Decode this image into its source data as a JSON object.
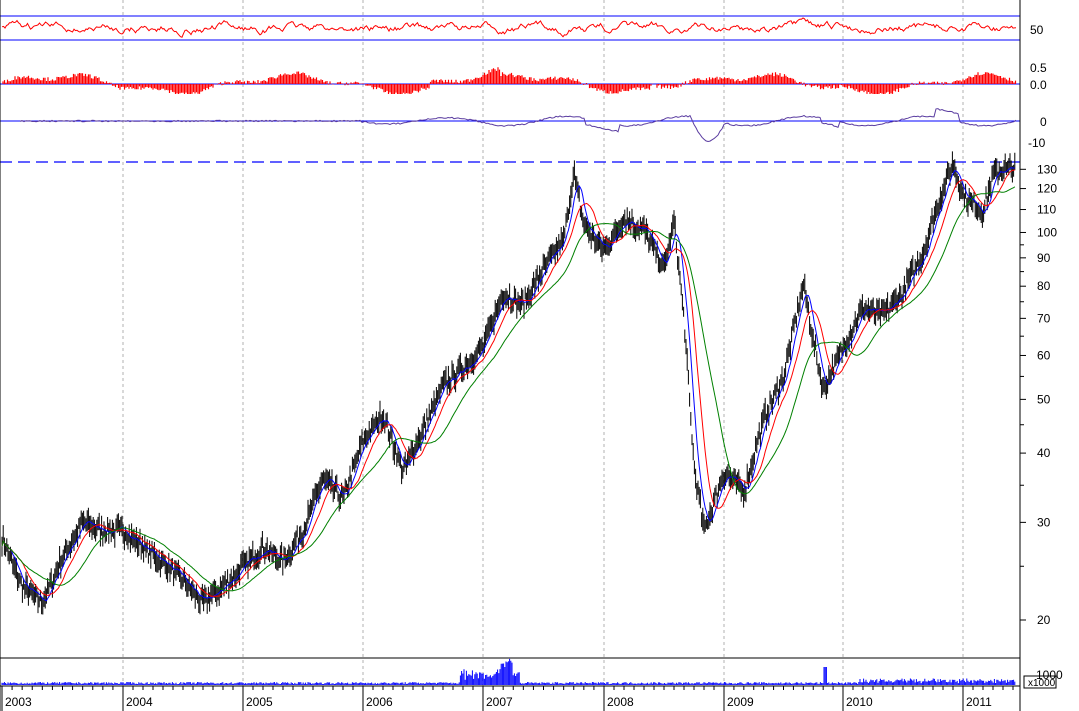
{
  "chart_data": {
    "type": "line",
    "scale": "log",
    "grid": "vertical dashed at year boundaries",
    "colors": {
      "price": "#000000",
      "ma_red": "#ff0000",
      "ma_blue": "#0000ff",
      "ma_green": "#008000",
      "rsi": "#ff0000",
      "histogram": "#ff0000",
      "momentum": "#5a3ca0",
      "volume": "#0000ff",
      "reference_lines": "#0000ff"
    },
    "x": [
      "2003",
      "2004",
      "2005",
      "2006",
      "2007",
      "2008",
      "2009",
      "2010",
      "2011"
    ],
    "price_panel": {
      "y_ticks": [
        "130",
        "120",
        "110",
        "100",
        "90",
        "80",
        "70",
        "60",
        "50",
        "40",
        "30",
        "20"
      ],
      "y_tick_values": [
        130,
        120,
        110,
        100,
        90,
        80,
        70,
        60,
        50,
        40,
        30,
        20
      ],
      "ylim": [
        17,
        138
      ],
      "reference_level": 134,
      "series": [
        {
          "points": [
            [
              "2003-01",
              28
            ],
            [
              "2003-03",
              23
            ],
            [
              "2003-05",
              21.5
            ],
            [
              "2003-07",
              26
            ],
            [
              "2003-09",
              30
            ],
            [
              "2003-11",
              29
            ],
            [
              "2004-01",
              29
            ],
            [
              "2004-03",
              27
            ],
            [
              "2004-05",
              25.5
            ],
            [
              "2004-07",
              23.5
            ],
            [
              "2004-09",
              21.5
            ],
            [
              "2004-11",
              23
            ],
            [
              "2005-01",
              25
            ],
            [
              "2005-03",
              27
            ],
            [
              "2005-05",
              25.5
            ],
            [
              "2005-07",
              29
            ],
            [
              "2005-09",
              36
            ],
            [
              "2005-11",
              33
            ],
            [
              "2006-01",
              42
            ],
            [
              "2006-03",
              47
            ],
            [
              "2006-05",
              37
            ],
            [
              "2006-07",
              44
            ],
            [
              "2006-09",
              53
            ],
            [
              "2006-11",
              57
            ],
            [
              "2007-01",
              62
            ],
            [
              "2007-03",
              78
            ],
            [
              "2007-05",
              74
            ],
            [
              "2007-07",
              86
            ],
            [
              "2007-09",
              97
            ],
            [
              "2007-10",
              128
            ],
            [
              "2007-11",
              103
            ],
            [
              "2008-01",
              93
            ],
            [
              "2008-03",
              106
            ],
            [
              "2008-05",
              101
            ],
            [
              "2008-07",
              86
            ],
            [
              "2008-08",
              105
            ],
            [
              "2008-09",
              70
            ],
            [
              "2008-10",
              38
            ],
            [
              "2008-11",
              29
            ],
            [
              "2009-01",
              37
            ],
            [
              "2009-03",
              34
            ],
            [
              "2009-05",
              46
            ],
            [
              "2009-07",
              55
            ],
            [
              "2009-09",
              81
            ],
            [
              "2009-10",
              64
            ],
            [
              "2009-11",
              52
            ],
            [
              "2010-01",
              62
            ],
            [
              "2010-03",
              73
            ],
            [
              "2010-05",
              71
            ],
            [
              "2010-07",
              78
            ],
            [
              "2010-09",
              92
            ],
            [
              "2010-11",
              120
            ],
            [
              "2010-12",
              133
            ],
            [
              "2011-01",
              117
            ],
            [
              "2011-03",
              109
            ],
            [
              "2011-04",
              127
            ],
            [
              "2011-05",
              130
            ]
          ]
        }
      ]
    },
    "rsi_panel": {
      "y_ticks": [
        "50"
      ],
      "upper_band": 70,
      "lower_band": 30
    },
    "histogram_panel": {
      "y_ticks": [
        "0.5",
        "0.0"
      ]
    },
    "momentum_panel": {
      "y_ticks": [
        "0",
        "-10"
      ]
    },
    "volume_panel": {
      "scale_label": "x1000",
      "y_ticks": [
        "1000"
      ]
    }
  }
}
